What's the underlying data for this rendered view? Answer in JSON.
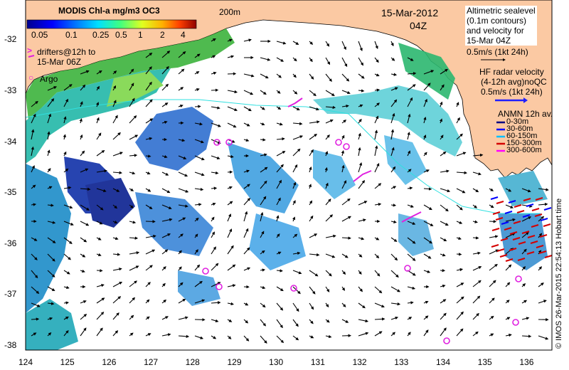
{
  "map": {
    "legend_title": "MODIS Chl-a mg/m3 OC3",
    "colorbar_ticks": [
      "0.05",
      "0.1",
      "0.25",
      "0.5",
      "1",
      "2",
      "4"
    ],
    "contour_label": "200m",
    "date": "15-Mar-2012",
    "time": "04Z",
    "altimetry_lines": [
      "Altimetric sealevel",
      "(0.1m contours)",
      "and velocity for",
      "15-Mar 04Z"
    ],
    "altimetry_scale": "0.5m/s (1kt 24h)",
    "drifters_lines": [
      "drifters@12h to",
      "15-Mar 06Z"
    ],
    "argo_label": "Argo",
    "hf_radar_lines": [
      "HF radar velocity",
      "(4-12h avg)noQC"
    ],
    "hf_radar_scale": "0.5m/s (1kt 24h)",
    "anmn_title": "ANMN 12h av.",
    "anmn_items": [
      {
        "label": "0-30m",
        "color": "#000080"
      },
      {
        "label": "30-60m",
        "color": "#0000ff"
      },
      {
        "label": "60-150m",
        "color": "#00bfff"
      },
      {
        "label": "150-300m",
        "color": "#d40000"
      },
      {
        "label": "300-600m",
        "color": "#ff00ff"
      }
    ],
    "credit": "© IMOS 26-Mar-2015 22:54:13 Hobart time",
    "lat_ticks": [
      "-32",
      "-33",
      "-34",
      "-35",
      "-36",
      "-37",
      "-38"
    ],
    "lon_ticks": [
      "124",
      "125",
      "126",
      "127",
      "128",
      "129",
      "130",
      "131",
      "132",
      "133",
      "134",
      "135",
      "136"
    ],
    "colors": {
      "land": "#fbc9a3",
      "argo": "#e020e0",
      "hf_radar": "#2020ff"
    }
  }
}
